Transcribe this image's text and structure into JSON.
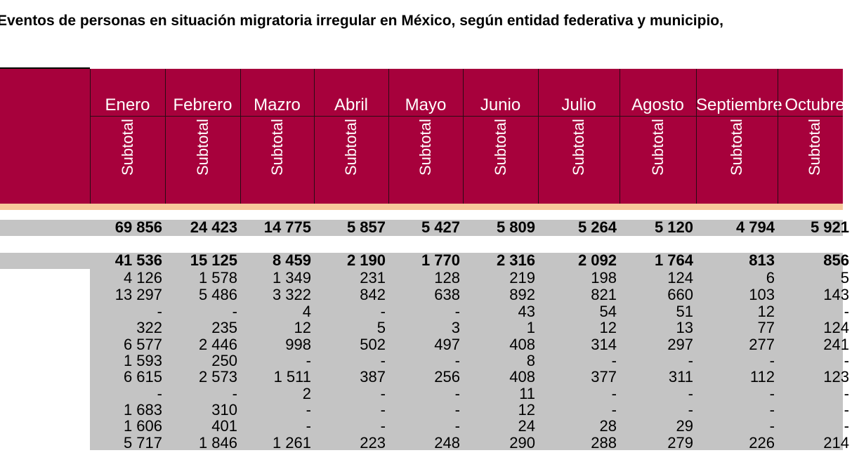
{
  "title": "Eventos de personas en situación migratoria irregular en México, según entidad federativa y municipio,",
  "months": [
    "Enero",
    "Febrero",
    "Mazro",
    "Abril",
    "Mayo",
    "Junio",
    "Julio",
    "Agosto",
    "Septiembre",
    "Octubre"
  ],
  "subtotal_label": "Subtotal",
  "rows": [
    [
      "69 856",
      "24 423",
      "14 775",
      "5 857",
      "5 427",
      "5 809",
      "5 264",
      "5 120",
      "4 794",
      "5 921"
    ],
    [
      "41 536",
      "15 125",
      "8 459",
      "2 190",
      "1 770",
      "2 316",
      "2 092",
      "1 764",
      "813",
      "856"
    ],
    [
      "4 126",
      "1 578",
      "1 349",
      "231",
      "128",
      "219",
      "198",
      "124",
      "6",
      "5"
    ],
    [
      "13 297",
      "5 486",
      "3 322",
      "842",
      "638",
      "892",
      "821",
      "660",
      "103",
      "143"
    ],
    [
      "-",
      "-",
      "4",
      "-",
      "-",
      "43",
      "54",
      "51",
      "12",
      "-"
    ],
    [
      "322",
      "235",
      "12",
      "5",
      "3",
      "1",
      "12",
      "13",
      "77",
      "124"
    ],
    [
      "6 577",
      "2 446",
      "998",
      "502",
      "497",
      "408",
      "314",
      "297",
      "277",
      "241"
    ],
    [
      "1 593",
      "250",
      "-",
      "-",
      "-",
      "8",
      "-",
      "-",
      "-",
      "-"
    ],
    [
      "6 615",
      "2 573",
      "1 511",
      "387",
      "256",
      "408",
      "377",
      "311",
      "112",
      "123"
    ],
    [
      "-",
      "-",
      "2",
      "-",
      "-",
      "11",
      "-",
      "-",
      "-",
      "-"
    ],
    [
      "1 683",
      "310",
      "-",
      "-",
      "-",
      "12",
      "-",
      "-",
      "-",
      "-"
    ],
    [
      "1 606",
      "401",
      "-",
      "-",
      "-",
      "24",
      "28",
      "29",
      "-",
      "-"
    ],
    [
      "5 717",
      "1 846",
      "1 261",
      "223",
      "248",
      "290",
      "288",
      "279",
      "226",
      "214"
    ]
  ]
}
